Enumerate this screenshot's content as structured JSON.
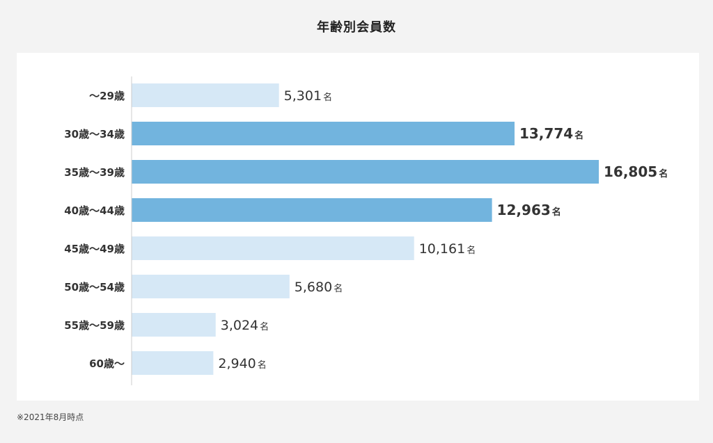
{
  "chart_title": "年齢別会員数",
  "note": "※2021年8月時点",
  "unit": "名",
  "colors": {
    "highlight": "#72b4de",
    "normal": "#d6e8f6",
    "axis": "#cccccc"
  },
  "chart_data": {
    "type": "bar",
    "orientation": "horizontal",
    "title": "年齢別会員数",
    "xlabel": "",
    "ylabel": "",
    "grid": false,
    "legend": "none",
    "xlim": [
      0,
      16805
    ],
    "categories": [
      "～29歳",
      "30歳～34歳",
      "35歳～39歳",
      "40歳～44歳",
      "45歳～49歳",
      "50歳～54歳",
      "55歳～59歳",
      "60歳～"
    ],
    "values": [
      5301,
      13774,
      16805,
      12963,
      10161,
      5680,
      3024,
      2940
    ],
    "labels": [
      "5,301",
      "13,774",
      "16,805",
      "12,963",
      "10,161",
      "5,680",
      "3,024",
      "2,940"
    ],
    "highlighted": [
      false,
      true,
      true,
      true,
      false,
      false,
      false,
      false
    ]
  }
}
